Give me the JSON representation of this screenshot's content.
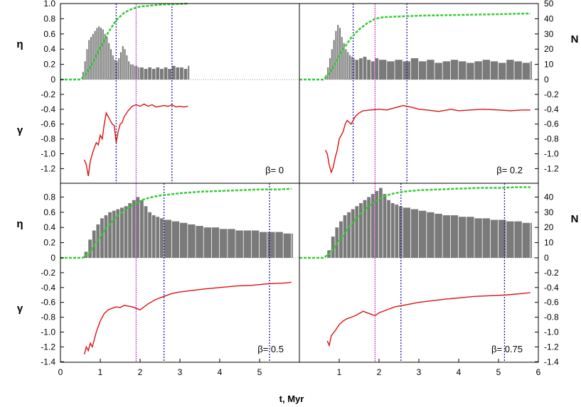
{
  "chart_data": {
    "type": "multi-panel bar + line",
    "xlabel": "t, Myr",
    "x_ticks": [
      "0",
      "1",
      "2",
      "3",
      "4",
      "5",
      "6"
    ],
    "xlim": [
      0,
      6
    ],
    "left_axis": {
      "eta_label": "η",
      "gamma_label": "γ",
      "eta_ticks": [
        "0",
        "0.2",
        "0.4",
        "0.6",
        "0.8",
        "1.0"
      ],
      "gamma_ticks": [
        "-0.2",
        "-0.4",
        "-0.6",
        "-0.8",
        "-1.0",
        "-1.2",
        "-1.4"
      ]
    },
    "right_axis": {
      "label": "N",
      "n_ticks": [
        "0",
        "10",
        "20",
        "30",
        "40",
        "50"
      ],
      "gamma_ticks": [
        "-0.2",
        "-0.4",
        "-0.6",
        "-0.8",
        "-1.0",
        "-1.2",
        "-1.4"
      ]
    },
    "eta_range": [
      0,
      1.0
    ],
    "N_range": [
      0,
      50
    ],
    "gamma_range": [
      -1.4,
      0
    ],
    "panels": [
      {
        "label": "β= 0",
        "beta": 0,
        "vlines_blue": [
          1.4,
          2.8
        ],
        "vline_magenta": 1.9,
        "N_histogram": {
          "t": [
            0.55,
            0.6,
            0.65,
            0.7,
            0.75,
            0.8,
            0.85,
            0.9,
            0.95,
            1.0,
            1.05,
            1.1,
            1.15,
            1.2,
            1.25,
            1.3,
            1.35,
            1.4,
            1.45,
            1.5,
            1.55,
            1.6,
            1.65,
            1.7,
            1.75,
            1.8,
            1.85,
            1.9,
            1.95,
            2.0,
            2.1,
            2.2,
            2.3,
            2.4,
            2.5,
            2.6,
            2.7,
            2.8,
            2.9,
            3.0,
            3.1,
            3.2
          ],
          "N": [
            5,
            12,
            20,
            26,
            28,
            30,
            32,
            34,
            35,
            34,
            33,
            30,
            28,
            24,
            20,
            16,
            13,
            12,
            14,
            18,
            22,
            20,
            16,
            12,
            10,
            10,
            9,
            9,
            8,
            8,
            7,
            8,
            7,
            8,
            7,
            8,
            7,
            9,
            8,
            8,
            7,
            9
          ]
        },
        "eta_cumulative": {
          "t": [
            0,
            0.5,
            0.6,
            0.8,
            1.0,
            1.2,
            1.4,
            1.6,
            1.8,
            2.0,
            2.2,
            2.4,
            2.6,
            2.8,
            3.2
          ],
          "eta": [
            0,
            0,
            0.05,
            0.2,
            0.42,
            0.62,
            0.78,
            0.88,
            0.93,
            0.96,
            0.97,
            0.98,
            0.99,
            0.99,
            1.0
          ]
        },
        "gamma_line": {
          "t": [
            0.6,
            0.65,
            0.7,
            0.75,
            0.8,
            0.85,
            0.9,
            0.95,
            1.0,
            1.05,
            1.1,
            1.15,
            1.2,
            1.25,
            1.3,
            1.35,
            1.4,
            1.45,
            1.5,
            1.55,
            1.6,
            1.7,
            1.8,
            1.9,
            2.0,
            2.1,
            2.2,
            2.3,
            2.4,
            2.5,
            2.6,
            2.7,
            2.8,
            2.9,
            3.0,
            3.1,
            3.2
          ],
          "gamma": [
            -1.08,
            -1.15,
            -1.3,
            -1.1,
            -1.0,
            -0.92,
            -0.85,
            -0.88,
            -0.75,
            -0.8,
            -0.6,
            -0.45,
            -0.5,
            -0.55,
            -0.6,
            -0.62,
            -0.85,
            -0.7,
            -0.6,
            -0.58,
            -0.5,
            -0.42,
            -0.36,
            -0.34,
            -0.36,
            -0.33,
            -0.36,
            -0.34,
            -0.37,
            -0.36,
            -0.35,
            -0.36,
            -0.34,
            -0.37,
            -0.36,
            -0.37,
            -0.36
          ]
        }
      },
      {
        "label": "β= 0.2",
        "beta": 0.2,
        "vlines_blue": [
          1.35,
          2.7
        ],
        "vline_magenta": 1.9,
        "N_histogram": {
          "t": [
            0.65,
            0.7,
            0.75,
            0.8,
            0.85,
            0.9,
            0.95,
            1.0,
            1.05,
            1.1,
            1.15,
            1.2,
            1.25,
            1.3,
            1.35,
            1.4,
            1.5,
            1.6,
            1.7,
            1.8,
            1.9,
            2.0,
            2.2,
            2.4,
            2.6,
            2.8,
            3.0,
            3.2,
            3.4,
            3.6,
            3.8,
            4.0,
            4.2,
            4.4,
            4.6,
            4.8,
            5.0,
            5.2,
            5.4,
            5.6,
            5.8
          ],
          "N": [
            3,
            8,
            14,
            20,
            26,
            32,
            36,
            34,
            28,
            24,
            20,
            18,
            16,
            15,
            14,
            13,
            14,
            15,
            13,
            12,
            14,
            13,
            12,
            13,
            12,
            14,
            12,
            13,
            11,
            12,
            13,
            12,
            11,
            12,
            13,
            12,
            11,
            13,
            12,
            11,
            12
          ]
        },
        "eta_cumulative": {
          "t": [
            0,
            0.6,
            0.7,
            0.9,
            1.1,
            1.3,
            1.5,
            1.7,
            1.9,
            2.1,
            2.5,
            3.0,
            4.0,
            5.0,
            5.8
          ],
          "eta": [
            0,
            0,
            0.05,
            0.2,
            0.4,
            0.55,
            0.66,
            0.74,
            0.8,
            0.82,
            0.83,
            0.84,
            0.85,
            0.86,
            0.87
          ]
        },
        "gamma_line": {
          "t": [
            0.65,
            0.7,
            0.75,
            0.8,
            0.85,
            0.9,
            0.95,
            1.0,
            1.05,
            1.1,
            1.15,
            1.2,
            1.3,
            1.4,
            1.5,
            1.6,
            1.8,
            2.0,
            2.2,
            2.4,
            2.6,
            2.8,
            3.0,
            3.2,
            3.5,
            3.8,
            4.0,
            4.3,
            4.6,
            5.0,
            5.3,
            5.6,
            5.8
          ],
          "gamma": [
            -0.95,
            -1.0,
            -1.15,
            -1.25,
            -1.18,
            -1.05,
            -0.95,
            -0.8,
            -0.75,
            -0.7,
            -0.6,
            -0.55,
            -0.6,
            -0.5,
            -0.45,
            -0.42,
            -0.41,
            -0.4,
            -0.41,
            -0.38,
            -0.35,
            -0.37,
            -0.4,
            -0.41,
            -0.43,
            -0.4,
            -0.42,
            -0.41,
            -0.4,
            -0.41,
            -0.42,
            -0.41,
            -0.41
          ]
        }
      },
      {
        "label": "β= 0.5",
        "beta": 0.5,
        "vlines_blue": [
          2.6,
          5.25
        ],
        "vline_magenta": 1.9,
        "N_histogram": {
          "t": [
            0.6,
            0.7,
            0.8,
            0.9,
            1.0,
            1.1,
            1.2,
            1.3,
            1.4,
            1.5,
            1.6,
            1.7,
            1.8,
            1.9,
            2.0,
            2.1,
            2.2,
            2.3,
            2.4,
            2.5,
            2.6,
            2.8,
            3.0,
            3.2,
            3.4,
            3.6,
            3.8,
            4.0,
            4.2,
            4.4,
            4.6,
            4.8,
            5.0,
            5.2,
            5.4,
            5.6,
            5.8
          ],
          "N": [
            4,
            12,
            18,
            22,
            26,
            28,
            30,
            31,
            32,
            33,
            34,
            36,
            38,
            40,
            38,
            34,
            30,
            28,
            27,
            26,
            25,
            24,
            23,
            22,
            21,
            20,
            20,
            19,
            19,
            18,
            18,
            18,
            17,
            17,
            17,
            16,
            16
          ]
        },
        "eta_cumulative": {
          "t": [
            0,
            0.55,
            0.7,
            0.9,
            1.1,
            1.3,
            1.5,
            1.7,
            1.9,
            2.1,
            2.3,
            2.5,
            3.0,
            3.5,
            4.0,
            4.5,
            5.0,
            5.5,
            5.8
          ],
          "eta": [
            0,
            0,
            0.05,
            0.2,
            0.36,
            0.48,
            0.58,
            0.66,
            0.72,
            0.77,
            0.8,
            0.82,
            0.85,
            0.87,
            0.88,
            0.89,
            0.9,
            0.9,
            0.91
          ]
        },
        "gamma_line": {
          "t": [
            0.6,
            0.65,
            0.7,
            0.75,
            0.8,
            0.9,
            1.0,
            1.1,
            1.2,
            1.3,
            1.4,
            1.5,
            1.6,
            1.7,
            1.8,
            1.9,
            2.0,
            2.2,
            2.4,
            2.6,
            2.8,
            3.0,
            3.3,
            3.6,
            4.0,
            4.4,
            4.8,
            5.2,
            5.6,
            5.8
          ],
          "gamma": [
            -1.3,
            -1.2,
            -1.25,
            -1.15,
            -1.2,
            -1.0,
            -0.85,
            -0.75,
            -0.7,
            -0.68,
            -0.66,
            -0.67,
            -0.64,
            -0.65,
            -0.66,
            -0.68,
            -0.7,
            -0.62,
            -0.56,
            -0.52,
            -0.48,
            -0.46,
            -0.44,
            -0.42,
            -0.4,
            -0.38,
            -0.37,
            -0.35,
            -0.34,
            -0.33
          ]
        }
      },
      {
        "label": "β= 0.75",
        "beta": 0.75,
        "vlines_blue": [
          2.55,
          5.15
        ],
        "vline_magenta": 1.9,
        "N_histogram": {
          "t": [
            0.7,
            0.8,
            0.9,
            1.0,
            1.1,
            1.2,
            1.3,
            1.4,
            1.5,
            1.6,
            1.7,
            1.8,
            1.9,
            2.0,
            2.1,
            2.2,
            2.3,
            2.4,
            2.5,
            2.6,
            2.8,
            3.0,
            3.2,
            3.4,
            3.6,
            3.8,
            4.0,
            4.2,
            4.4,
            4.6,
            4.8,
            5.0,
            5.2,
            5.4,
            5.6,
            5.8
          ],
          "N": [
            5,
            14,
            20,
            24,
            28,
            30,
            32,
            34,
            36,
            38,
            40,
            42,
            44,
            46,
            42,
            38,
            36,
            35,
            34,
            33,
            32,
            31,
            30,
            29,
            28,
            28,
            27,
            27,
            26,
            26,
            25,
            25,
            24,
            24,
            23,
            23
          ]
        },
        "eta_cumulative": {
          "t": [
            0,
            0.6,
            0.75,
            0.9,
            1.1,
            1.3,
            1.5,
            1.7,
            1.9,
            2.1,
            2.3,
            2.6,
            3.0,
            3.5,
            4.0,
            4.5,
            5.0,
            5.5,
            5.8
          ],
          "eta": [
            0,
            0,
            0.05,
            0.15,
            0.3,
            0.44,
            0.56,
            0.66,
            0.74,
            0.8,
            0.84,
            0.87,
            0.89,
            0.9,
            0.91,
            0.92,
            0.92,
            0.93,
            0.93
          ]
        },
        "gamma_line": {
          "t": [
            0.7,
            0.75,
            0.8,
            0.9,
            1.0,
            1.1,
            1.2,
            1.3,
            1.4,
            1.5,
            1.6,
            1.7,
            1.8,
            1.9,
            2.0,
            2.2,
            2.4,
            2.6,
            2.8,
            3.0,
            3.3,
            3.6,
            4.0,
            4.4,
            4.8,
            5.2,
            5.6,
            5.8
          ],
          "gamma": [
            -1.12,
            -1.18,
            -1.05,
            -0.98,
            -0.9,
            -0.85,
            -0.82,
            -0.8,
            -0.78,
            -0.75,
            -0.72,
            -0.74,
            -0.76,
            -0.78,
            -0.74,
            -0.7,
            -0.66,
            -0.64,
            -0.62,
            -0.6,
            -0.58,
            -0.56,
            -0.54,
            -0.52,
            -0.51,
            -0.5,
            -0.48,
            -0.47
          ]
        }
      }
    ]
  }
}
